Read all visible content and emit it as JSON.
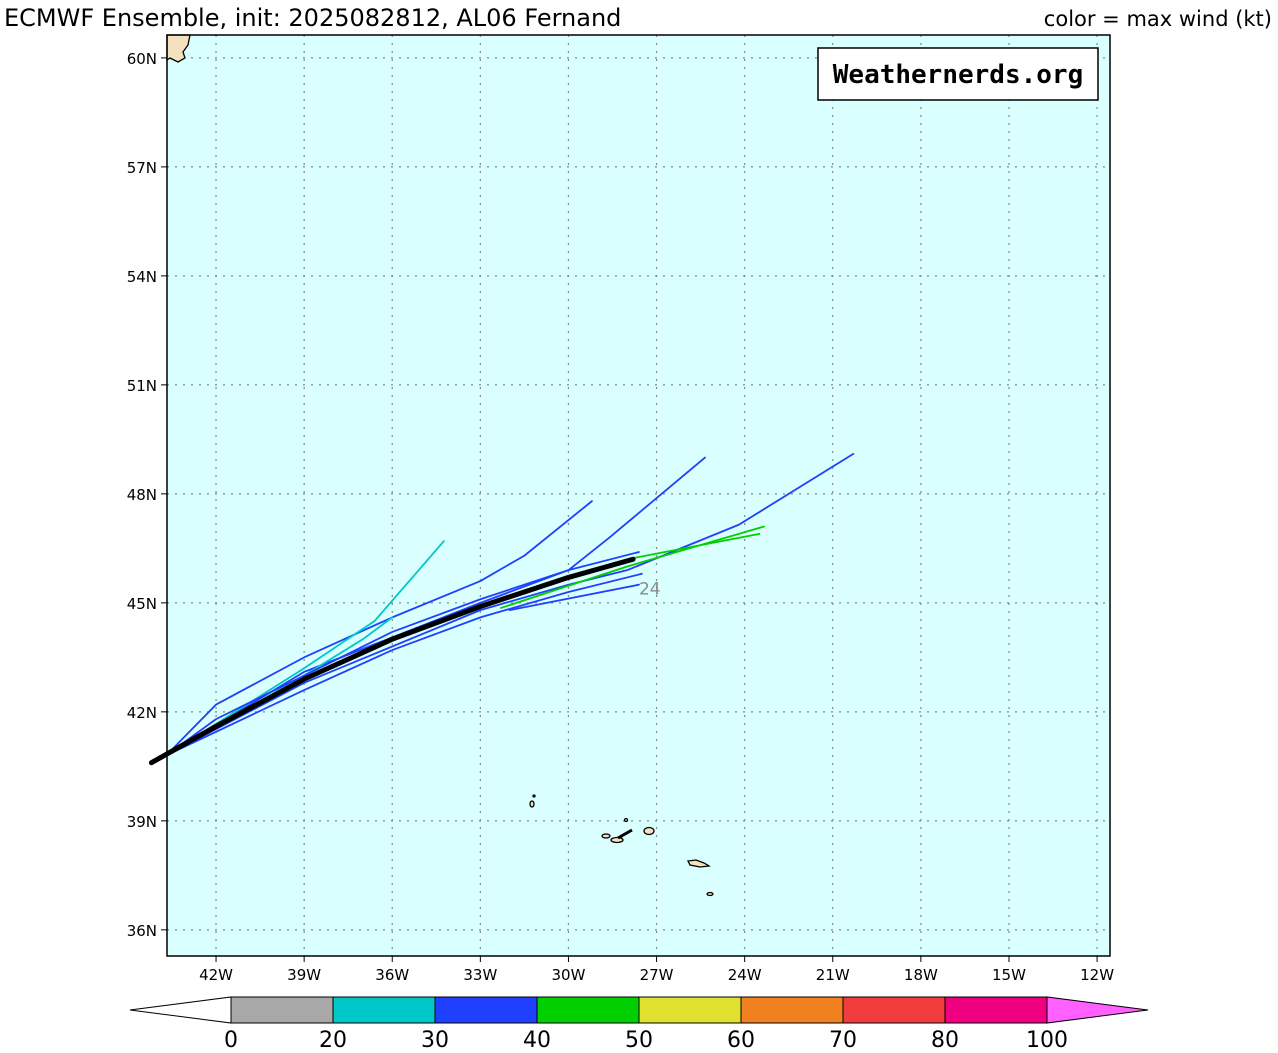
{
  "map": {
    "title": "ECMWF Ensemble, init: 2025082812, AL06 Fernand",
    "subtitle": "color = max wind (kt)",
    "watermark": "Weathernerds.org",
    "xlim": [
      -43.67,
      -11.56
    ],
    "ylim": [
      35.28,
      60.63
    ],
    "xticks": [
      {
        "value": -42,
        "label": "42W"
      },
      {
        "value": -39,
        "label": "39W"
      },
      {
        "value": -36,
        "label": "36W"
      },
      {
        "value": -33,
        "label": "33W"
      },
      {
        "value": -30,
        "label": "30W"
      },
      {
        "value": -27,
        "label": "27W"
      },
      {
        "value": -24,
        "label": "24W"
      },
      {
        "value": -21,
        "label": "21W"
      },
      {
        "value": -18,
        "label": "18W"
      },
      {
        "value": -15,
        "label": "15W"
      },
      {
        "value": -12,
        "label": "12W"
      }
    ],
    "yticks": [
      {
        "value": 36,
        "label": "36N"
      },
      {
        "value": 39,
        "label": "39N"
      },
      {
        "value": 42,
        "label": "42N"
      },
      {
        "value": 45,
        "label": "45N"
      },
      {
        "value": 48,
        "label": "48N"
      },
      {
        "value": 51,
        "label": "51N"
      },
      {
        "value": 54,
        "label": "54N"
      },
      {
        "value": 57,
        "label": "57N"
      },
      {
        "value": 60,
        "label": "60N"
      }
    ],
    "grid": true,
    "tracks": [
      {
        "color": "#2040ff",
        "lon": [
          -43.7,
          -42,
          -39,
          -36,
          -33,
          -31.5,
          -29.2
        ],
        "lat": [
          40.8,
          42.2,
          43.5,
          44.6,
          45.6,
          46.3,
          47.8
        ]
      },
      {
        "color": "#2040ff",
        "lon": [
          -43.7,
          -39,
          -33,
          -30,
          -28.6,
          -25.35
        ],
        "lat": [
          40.8,
          43.1,
          45.0,
          45.9,
          46.8,
          49.0
        ]
      },
      {
        "color": "#2040ff",
        "lon": [
          -43.7,
          -39,
          -33,
          -30,
          -28,
          -24.2,
          -20.3
        ],
        "lat": [
          40.8,
          42.8,
          44.8,
          45.5,
          45.9,
          47.15,
          49.1
        ]
      },
      {
        "color": "#00c8c8",
        "lon": [
          -43.7,
          -39,
          -36.6,
          -34.24
        ],
        "lat": [
          40.8,
          43.2,
          44.5,
          46.7
        ]
      },
      {
        "color": "#00c8c8",
        "lon": [
          -43.7,
          -39,
          -37,
          -36
        ],
        "lat": [
          40.8,
          43.0,
          44.0,
          44.6
        ]
      },
      {
        "color": "#00d000",
        "lon": [
          -32.3,
          -28,
          -23.34
        ],
        "lat": [
          44.86,
          46.0,
          47.1
        ]
      },
      {
        "color": "#00d000",
        "lon": [
          -28,
          -23.5
        ],
        "lat": [
          46.2,
          46.9
        ]
      },
      {
        "color": "#2040ff",
        "lon": [
          -43.7,
          -39,
          -36,
          -33,
          -30,
          -27.5
        ],
        "lat": [
          40.8,
          42.6,
          43.7,
          44.6,
          45.3,
          45.8
        ]
      },
      {
        "color": "#2040ff",
        "lon": [
          -43.7,
          -42,
          -39,
          -36,
          -33,
          -30,
          -27.6
        ],
        "lat": [
          40.8,
          41.8,
          43.0,
          44.2,
          45.1,
          45.9,
          46.4
        ]
      },
      {
        "color": "#2040ff",
        "lon": [
          -32,
          -27.6
        ],
        "lat": [
          44.8,
          45.5
        ]
      }
    ],
    "mean_track": {
      "color": "#000000",
      "lon": [
        -27.8,
        -30,
        -33,
        -36,
        -39,
        -42,
        -44.2
      ],
      "lat": [
        46.2,
        45.7,
        44.9,
        44.0,
        42.9,
        41.6,
        40.6
      ]
    },
    "annotation": {
      "text": "24",
      "lon": -27.6,
      "lat": 45.4
    },
    "colorbar": {
      "bounds": [
        0,
        20,
        30,
        40,
        50,
        60,
        70,
        80,
        100
      ],
      "colors": [
        "#a8a8a8",
        "#00c8c8",
        "#2040ff",
        "#00d000",
        "#e0e030",
        "#f08020",
        "#f03c3c",
        "#f00080"
      ],
      "under_color": "#ffffff",
      "over_color": "#ff60ff"
    }
  }
}
